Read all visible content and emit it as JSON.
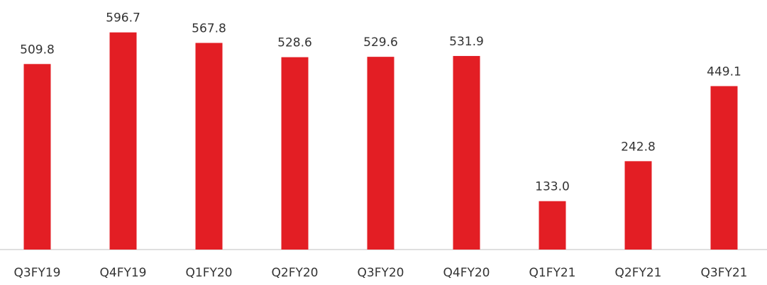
{
  "chart_data": {
    "type": "bar",
    "categories": [
      "Q3FY19",
      "Q4FY19",
      "Q1FY20",
      "Q2FY20",
      "Q3FY20",
      "Q4FY20",
      "Q1FY21",
      "Q2FY21",
      "Q3FY21"
    ],
    "values": [
      509.8,
      596.7,
      567.8,
      528.6,
      529.6,
      531.9,
      133.0,
      242.8,
      449.1
    ],
    "value_labels": [
      "509.8",
      "596.7",
      "567.8",
      "528.6",
      "529.6",
      "531.9",
      "133.0",
      "242.8",
      "449.1"
    ],
    "color": "#e31e24",
    "ylim": [
      0,
      600
    ]
  }
}
